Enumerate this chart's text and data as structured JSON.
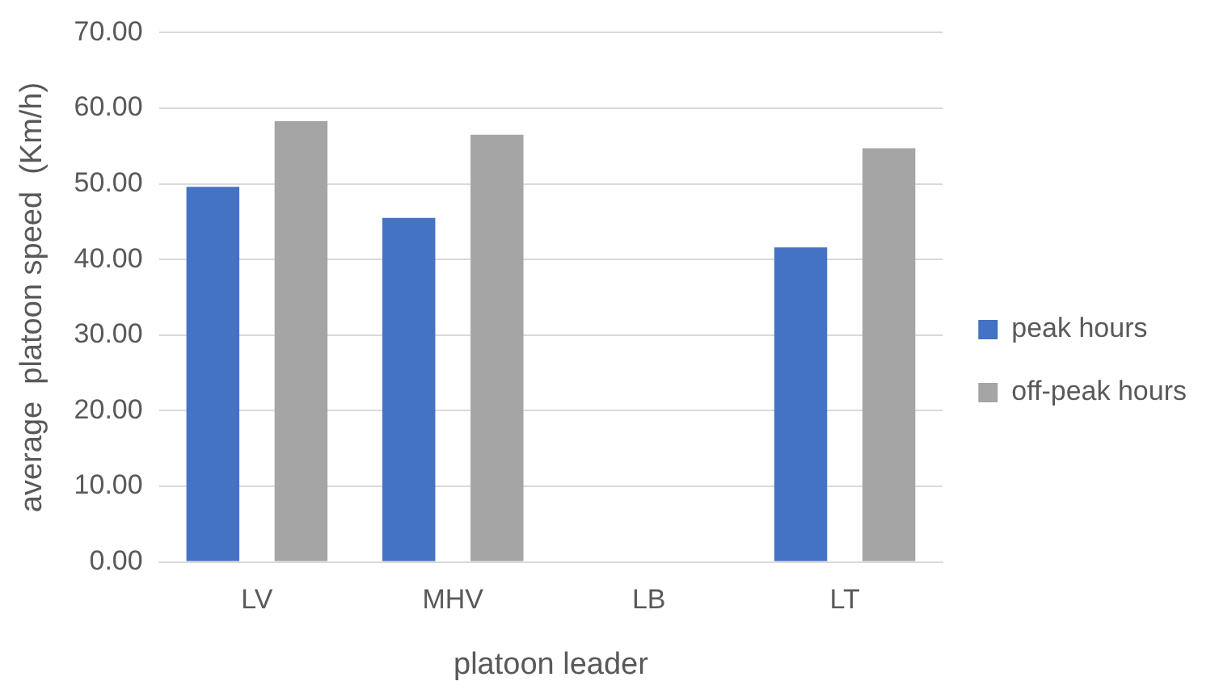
{
  "chart_data": {
    "type": "bar",
    "xlabel": "platoon leader",
    "ylabel": "average  platoon speed  (Km/h)",
    "categories": [
      "LV",
      "MHV",
      "LB",
      "LT"
    ],
    "series": [
      {
        "name": "peak hours",
        "color": "#4472c4",
        "values": [
          49.6,
          45.5,
          0,
          41.6
        ]
      },
      {
        "name": "off-peak hours",
        "color": "#a5a5a5",
        "values": [
          58.3,
          56.5,
          0,
          54.7
        ]
      }
    ],
    "ylim": [
      0,
      70
    ],
    "yticks": [
      {
        "value": 0,
        "label": "0.00"
      },
      {
        "value": 10,
        "label": "10.00"
      },
      {
        "value": 20,
        "label": "20.00"
      },
      {
        "value": 30,
        "label": "30.00"
      },
      {
        "value": 40,
        "label": "40.00"
      },
      {
        "value": 50,
        "label": "50.00"
      },
      {
        "value": 60,
        "label": "60.00"
      },
      {
        "value": 70,
        "label": "70.00"
      }
    ],
    "grid": "y",
    "legend": "right"
  }
}
